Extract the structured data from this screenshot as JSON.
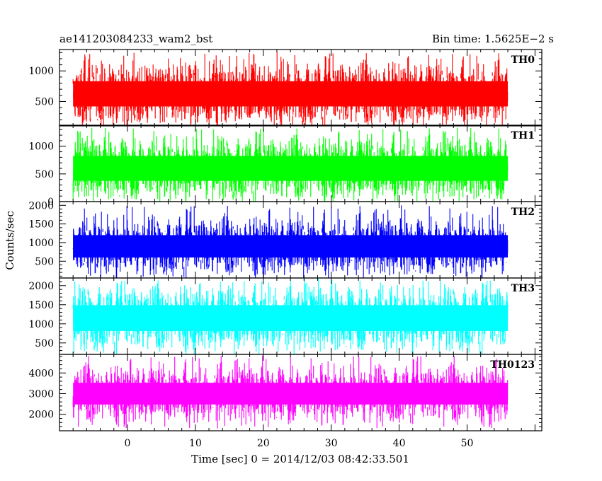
{
  "chart_data": {
    "type": "line",
    "title_left": "ae141203084233_wam2_bst",
    "title_right": "Bin time: 1.5625E−2 s",
    "xlabel": "Time [sec] 0 = 2014/12/03 08:42:33.501",
    "ylabel": "Counts/sec",
    "xlim": [
      -10,
      61
    ],
    "x_data_range": [
      -8.0,
      56.0
    ],
    "bin_time": 0.015625,
    "x_ticks": [
      0,
      10,
      20,
      30,
      40,
      50
    ],
    "grid": false,
    "series": [
      {
        "name": "TH0",
        "color": "#ff0000",
        "ylim": [
          100,
          1350
        ],
        "yticks": [
          500,
          1000
        ],
        "y_typical_range": [
          350,
          900
        ],
        "y_max": 1300,
        "y_min": 150
      },
      {
        "name": "TH1",
        "color": "#00ff00",
        "ylim": [
          0,
          1380
        ],
        "yticks": [
          0,
          500,
          1000
        ],
        "y_typical_range": [
          300,
          900
        ],
        "y_max": 1330,
        "y_min": 50
      },
      {
        "name": "TH2",
        "color": "#0000ff",
        "ylim": [
          50,
          2100
        ],
        "yticks": [
          500,
          1000,
          1500,
          2000
        ],
        "y_typical_range": [
          500,
          1300
        ],
        "y_max": 2000,
        "y_min": 120
      },
      {
        "name": "TH3",
        "color": "#00ffff",
        "ylim": [
          200,
          2200
        ],
        "yticks": [
          500,
          1000,
          1500,
          2000
        ],
        "y_typical_range": [
          700,
          1600
        ],
        "y_max": 2150,
        "y_min": 300
      },
      {
        "name": "TH0123",
        "color": "#ff00ff",
        "ylim": [
          1200,
          4900
        ],
        "yticks": [
          2000,
          3000,
          4000
        ],
        "y_typical_range": [
          2300,
          3700
        ],
        "y_max": 4850,
        "y_min": 1300
      }
    ]
  }
}
